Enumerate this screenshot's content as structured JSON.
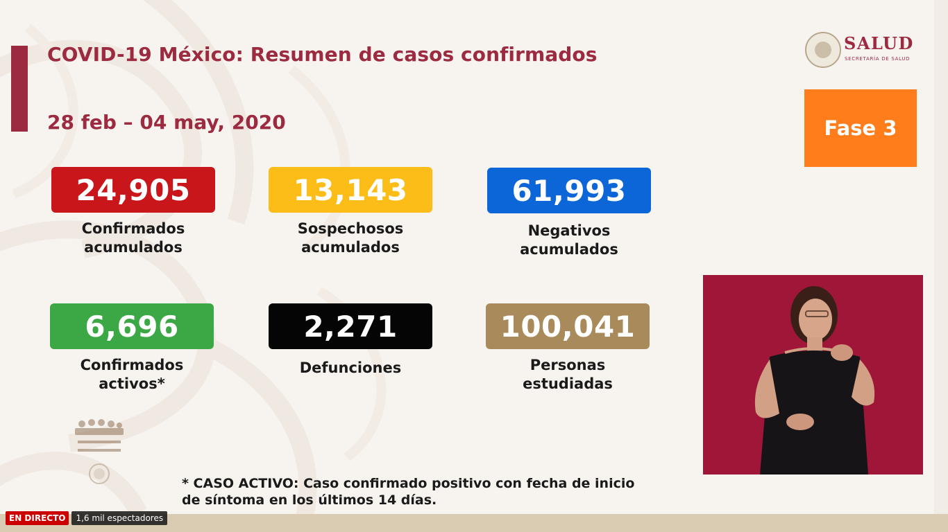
{
  "slide": {
    "title": "COVID-19 México: Resumen de casos confirmados",
    "date_range": "28 feb – 04 may, 2020",
    "phase_label": "Fase 3",
    "phase_color": "#ff7d1a",
    "accent_color": "#9c2a40"
  },
  "logo": {
    "name": "SALUD",
    "subtitle": "SECRETARÍA DE SALUD"
  },
  "stats": [
    {
      "value": "24,905",
      "label_line1": "Confirmados",
      "label_line2": "acumulados",
      "color": "#c8161b"
    },
    {
      "value": "13,143",
      "label_line1": "Sospechosos",
      "label_line2": "acumulados",
      "color": "#fcbd18"
    },
    {
      "value": "61,993",
      "label_line1": "Negativos",
      "label_line2": "acumulados",
      "color": "#0c66d8"
    },
    {
      "value": "6,696",
      "label_line1": "Confirmados",
      "label_line2": "activos*",
      "color": "#3ca845"
    },
    {
      "value": "2,271",
      "label_line1": "Defunciones",
      "label_line2": "",
      "color": "#050505"
    },
    {
      "value": "100,041",
      "label_line1": "Personas",
      "label_line2": "estudiadas",
      "color": "#a98a5a"
    }
  ],
  "footnote": {
    "line1": "* CASO ACTIVO: Caso confirmado positivo con fecha de inicio",
    "line2": "de síntoma en los últimos 14 días."
  },
  "stream": {
    "live_badge": "EN DIRECTO",
    "viewers": "1,6 mil espectadores"
  }
}
